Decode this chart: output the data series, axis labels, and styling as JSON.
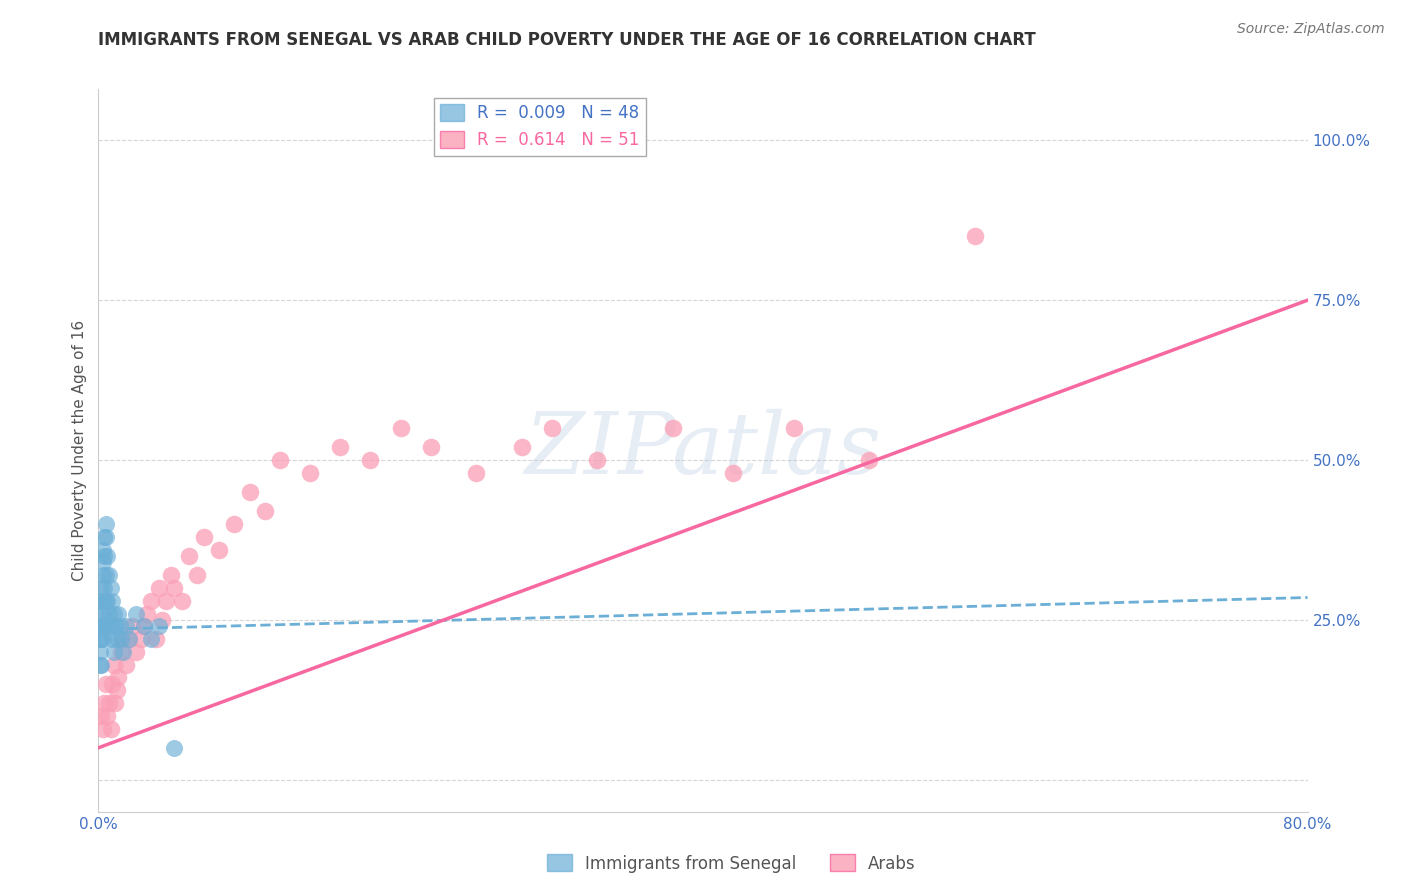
{
  "title": "IMMIGRANTS FROM SENEGAL VS ARAB CHILD POVERTY UNDER THE AGE OF 16 CORRELATION CHART",
  "source": "Source: ZipAtlas.com",
  "ylabel": "Child Poverty Under the Age of 16",
  "xlim": [
    0.0,
    0.8
  ],
  "ylim": [
    -0.05,
    1.08
  ],
  "xticks": [
    0.0,
    0.1,
    0.2,
    0.3,
    0.4,
    0.5,
    0.6,
    0.7,
    0.8
  ],
  "xticklabels": [
    "0.0%",
    "",
    "",
    "",
    "",
    "",
    "",
    "",
    "80.0%"
  ],
  "ytick_positions": [
    0.0,
    0.25,
    0.5,
    0.75,
    1.0
  ],
  "yticklabels": [
    "",
    "25.0%",
    "50.0%",
    "75.0%",
    "100.0%"
  ],
  "legend_label_s": "R =  0.009   N = 48",
  "legend_label_a": "R =  0.614   N = 51",
  "watermark": "ZIPatlas",
  "senegal_color": "#6baed6",
  "arabs_color": "#fa9fb5",
  "background_color": "#ffffff",
  "grid_color": "#cccccc",
  "senegal_x": [
    0.001,
    0.001,
    0.001,
    0.001,
    0.002,
    0.002,
    0.002,
    0.002,
    0.002,
    0.002,
    0.003,
    0.003,
    0.003,
    0.003,
    0.003,
    0.003,
    0.004,
    0.004,
    0.004,
    0.004,
    0.005,
    0.005,
    0.005,
    0.005,
    0.006,
    0.006,
    0.006,
    0.007,
    0.007,
    0.008,
    0.008,
    0.009,
    0.009,
    0.01,
    0.01,
    0.011,
    0.012,
    0.013,
    0.014,
    0.015,
    0.016,
    0.018,
    0.02,
    0.025,
    0.03,
    0.035,
    0.04,
    0.05
  ],
  "senegal_y": [
    0.24,
    0.22,
    0.2,
    0.18,
    0.3,
    0.28,
    0.26,
    0.24,
    0.22,
    0.18,
    0.36,
    0.34,
    0.32,
    0.28,
    0.26,
    0.22,
    0.38,
    0.35,
    0.3,
    0.24,
    0.4,
    0.38,
    0.32,
    0.28,
    0.35,
    0.28,
    0.24,
    0.32,
    0.26,
    0.3,
    0.24,
    0.28,
    0.22,
    0.26,
    0.2,
    0.24,
    0.22,
    0.26,
    0.24,
    0.22,
    0.2,
    0.24,
    0.22,
    0.26,
    0.24,
    0.22,
    0.24,
    0.05
  ],
  "arabs_x": [
    0.002,
    0.003,
    0.004,
    0.005,
    0.006,
    0.007,
    0.008,
    0.009,
    0.01,
    0.011,
    0.012,
    0.013,
    0.015,
    0.016,
    0.018,
    0.02,
    0.022,
    0.025,
    0.028,
    0.03,
    0.032,
    0.035,
    0.038,
    0.04,
    0.042,
    0.045,
    0.048,
    0.05,
    0.055,
    0.06,
    0.065,
    0.07,
    0.08,
    0.09,
    0.1,
    0.11,
    0.12,
    0.14,
    0.16,
    0.18,
    0.2,
    0.22,
    0.25,
    0.28,
    0.3,
    0.33,
    0.38,
    0.42,
    0.46,
    0.51,
    0.58
  ],
  "arabs_y": [
    0.1,
    0.08,
    0.12,
    0.15,
    0.1,
    0.12,
    0.08,
    0.15,
    0.18,
    0.12,
    0.14,
    0.16,
    0.2,
    0.22,
    0.18,
    0.22,
    0.24,
    0.2,
    0.22,
    0.24,
    0.26,
    0.28,
    0.22,
    0.3,
    0.25,
    0.28,
    0.32,
    0.3,
    0.28,
    0.35,
    0.32,
    0.38,
    0.36,
    0.4,
    0.45,
    0.42,
    0.5,
    0.48,
    0.52,
    0.5,
    0.55,
    0.52,
    0.48,
    0.52,
    0.55,
    0.5,
    0.55,
    0.48,
    0.55,
    0.5,
    0.85
  ],
  "arabs_trend_x0": 0.0,
  "arabs_trend_y0": 0.05,
  "arabs_trend_x1": 0.8,
  "arabs_trend_y1": 0.75,
  "senegal_trend_x0": 0.0,
  "senegal_trend_y0": 0.235,
  "senegal_trend_x1": 0.8,
  "senegal_trend_y1": 0.285
}
